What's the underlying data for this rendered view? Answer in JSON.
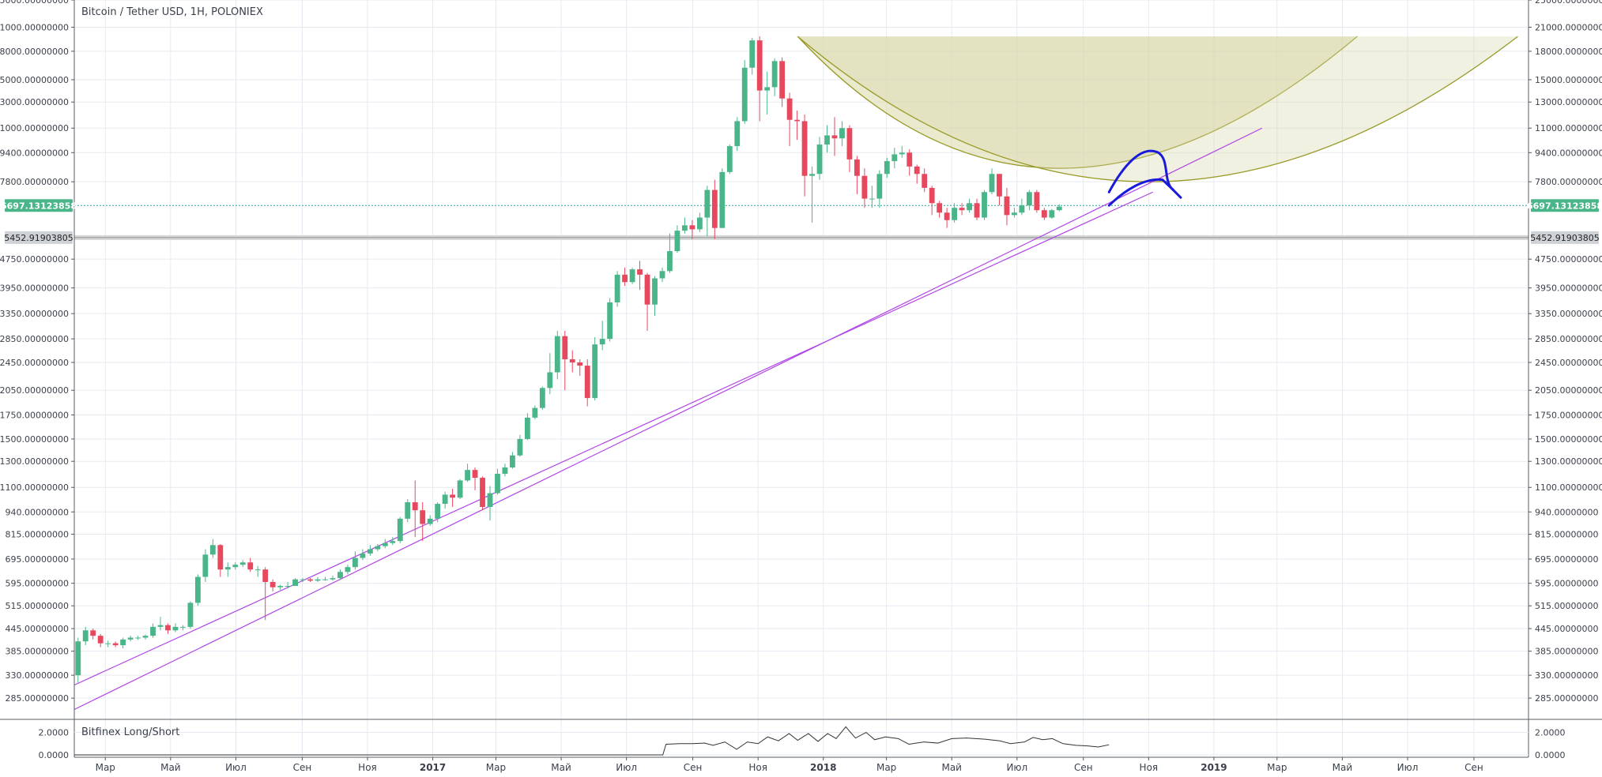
{
  "header": {
    "title": "Bitcoin / Tether USD, 1H, POLONIEX"
  },
  "price_badges": {
    "current": "6697.13123858",
    "support": "5452.91903805"
  },
  "indicator": {
    "title": "Bitfinex Long/Short",
    "ticks": [
      {
        "v": 2,
        "label": "2.0000"
      },
      {
        "v": 0,
        "label": "0.0000"
      }
    ],
    "series": [
      [
        "2016-02-01",
        0
      ],
      [
        "2016-03-01",
        0
      ],
      [
        "2016-05-01",
        0
      ],
      [
        "2016-07-01",
        0
      ],
      [
        "2016-09-01",
        0
      ],
      [
        "2016-11-01",
        0
      ],
      [
        "2017-01-01",
        0
      ],
      [
        "2017-03-01",
        0
      ],
      [
        "2017-05-01",
        0
      ],
      [
        "2017-07-01",
        0
      ],
      [
        "2017-08-04",
        0
      ],
      [
        "2017-08-07",
        0.95
      ],
      [
        "2017-08-20",
        1.0
      ],
      [
        "2017-09-01",
        1.0
      ],
      [
        "2017-09-12",
        1.05
      ],
      [
        "2017-09-20",
        0.85
      ],
      [
        "2017-10-01",
        1.15
      ],
      [
        "2017-10-12",
        0.5
      ],
      [
        "2017-10-22",
        1.15
      ],
      [
        "2017-11-01",
        1.0
      ],
      [
        "2017-11-10",
        1.6
      ],
      [
        "2017-11-20",
        1.25
      ],
      [
        "2017-11-30",
        1.9
      ],
      [
        "2017-12-08",
        1.3
      ],
      [
        "2017-12-18",
        1.9
      ],
      [
        "2017-12-27",
        1.2
      ],
      [
        "2018-01-05",
        1.9
      ],
      [
        "2018-01-13",
        1.45
      ],
      [
        "2018-01-22",
        2.5
      ],
      [
        "2018-01-31",
        1.5
      ],
      [
        "2018-02-10",
        2.0
      ],
      [
        "2018-02-18",
        1.35
      ],
      [
        "2018-02-28",
        1.6
      ],
      [
        "2018-03-12",
        1.45
      ],
      [
        "2018-03-22",
        0.95
      ],
      [
        "2018-04-05",
        1.15
      ],
      [
        "2018-04-18",
        1.05
      ],
      [
        "2018-05-01",
        1.45
      ],
      [
        "2018-05-15",
        1.5
      ],
      [
        "2018-06-01",
        1.4
      ],
      [
        "2018-06-15",
        1.25
      ],
      [
        "2018-06-25",
        1.0
      ],
      [
        "2018-07-08",
        1.15
      ],
      [
        "2018-07-16",
        1.55
      ],
      [
        "2018-07-25",
        1.35
      ],
      [
        "2018-08-03",
        1.45
      ],
      [
        "2018-08-13",
        1.0
      ],
      [
        "2018-08-25",
        0.85
      ],
      [
        "2018-09-05",
        0.8
      ],
      [
        "2018-09-15",
        0.7
      ],
      [
        "2018-09-25",
        0.9
      ]
    ]
  },
  "chart_data": {
    "type": "candlestick",
    "title": "Bitcoin / Tether USD, 1H, POLONIEX",
    "symbol": "Bitcoin / Tether USD",
    "interval": "1H",
    "exchange": "POLONIEX",
    "y_scale": "log",
    "ylim": [
      250,
      25000
    ],
    "x_range": [
      "2016-02-01",
      "2019-10-22"
    ],
    "y_ticks": [
      {
        "v": 25000,
        "label": "25000.00000000"
      },
      {
        "v": 21000,
        "label": "21000.00000000"
      },
      {
        "v": 18000,
        "label": "18000.00000000"
      },
      {
        "v": 15000,
        "label": "15000.00000000"
      },
      {
        "v": 13000,
        "label": "13000.00000000"
      },
      {
        "v": 11000,
        "label": "11000.00000000"
      },
      {
        "v": 9400,
        "label": "9400.00000000"
      },
      {
        "v": 7800,
        "label": "7800.00000000"
      },
      {
        "v": 4750,
        "label": "4750.00000000"
      },
      {
        "v": 3950,
        "label": "3950.00000000"
      },
      {
        "v": 3350,
        "label": "3350.00000000"
      },
      {
        "v": 2850,
        "label": "2850.00000000"
      },
      {
        "v": 2450,
        "label": "2450.00000000"
      },
      {
        "v": 2050,
        "label": "2050.00000000"
      },
      {
        "v": 1750,
        "label": "1750.00000000"
      },
      {
        "v": 1500,
        "label": "1500.00000000"
      },
      {
        "v": 1300,
        "label": "1300.00000000"
      },
      {
        "v": 1100,
        "label": "1100.00000000"
      },
      {
        "v": 940,
        "label": "940.00000000"
      },
      {
        "v": 815,
        "label": "815.00000000"
      },
      {
        "v": 695,
        "label": "695.00000000"
      },
      {
        "v": 595,
        "label": "595.00000000"
      },
      {
        "v": 515,
        "label": "515.00000000"
      },
      {
        "v": 445,
        "label": "445.00000000"
      },
      {
        "v": 385,
        "label": "385.00000000"
      },
      {
        "v": 330,
        "label": "330.00000000"
      },
      {
        "v": 285,
        "label": "285.00000000"
      }
    ],
    "x_ticks": [
      {
        "date": "2016-03-01",
        "label": "Мар",
        "bold": false
      },
      {
        "date": "2016-05-01",
        "label": "Май",
        "bold": false
      },
      {
        "date": "2016-07-01",
        "label": "Июл",
        "bold": false
      },
      {
        "date": "2016-09-01",
        "label": "Сен",
        "bold": false
      },
      {
        "date": "2016-11-01",
        "label": "Ноя",
        "bold": false
      },
      {
        "date": "2017-01-01",
        "label": "2017",
        "bold": true
      },
      {
        "date": "2017-03-01",
        "label": "Мар",
        "bold": false
      },
      {
        "date": "2017-05-01",
        "label": "Май",
        "bold": false
      },
      {
        "date": "2017-07-01",
        "label": "Июл",
        "bold": false
      },
      {
        "date": "2017-09-01",
        "label": "Сен",
        "bold": false
      },
      {
        "date": "2017-11-01",
        "label": "Ноя",
        "bold": false
      },
      {
        "date": "2018-01-01",
        "label": "2018",
        "bold": true
      },
      {
        "date": "2018-03-01",
        "label": "Мар",
        "bold": false
      },
      {
        "date": "2018-05-01",
        "label": "Май",
        "bold": false
      },
      {
        "date": "2018-07-01",
        "label": "Июл",
        "bold": false
      },
      {
        "date": "2018-09-01",
        "label": "Сен",
        "bold": false
      },
      {
        "date": "2018-11-01",
        "label": "Ноя",
        "bold": false
      },
      {
        "date": "2019-01-01",
        "label": "2019",
        "bold": true
      },
      {
        "date": "2019-03-01",
        "label": "Мар",
        "bold": false
      },
      {
        "date": "2019-05-01",
        "label": "Май",
        "bold": false
      },
      {
        "date": "2019-07-01",
        "label": "Июл",
        "bold": false
      },
      {
        "date": "2019-09-01",
        "label": "Сен",
        "bold": false
      }
    ],
    "candle_start": "2016-02-01",
    "candle_period_days": 7,
    "candles": [
      [
        330,
        410,
        315,
        420
      ],
      [
        410,
        440,
        400,
        450
      ],
      [
        440,
        425,
        415,
        445
      ],
      [
        425,
        405,
        395,
        430
      ],
      [
        405,
        405,
        395,
        412
      ],
      [
        405,
        400,
        395,
        410
      ],
      [
        400,
        415,
        392,
        420
      ],
      [
        415,
        420,
        410,
        425
      ],
      [
        420,
        420,
        414,
        425
      ],
      [
        420,
        425,
        415,
        428
      ],
      [
        425,
        450,
        420,
        460
      ],
      [
        450,
        455,
        440,
        480
      ],
      [
        455,
        440,
        430,
        460
      ],
      [
        440,
        450,
        435,
        460
      ],
      [
        450,
        450,
        440,
        455
      ],
      [
        450,
        525,
        445,
        530
      ],
      [
        525,
        620,
        515,
        630
      ],
      [
        620,
        715,
        600,
        740
      ],
      [
        715,
        760,
        700,
        790
      ],
      [
        760,
        650,
        620,
        765
      ],
      [
        650,
        660,
        620,
        680
      ],
      [
        660,
        670,
        650,
        680
      ],
      [
        670,
        680,
        660,
        690
      ],
      [
        680,
        650,
        640,
        700
      ],
      [
        650,
        650,
        620,
        665
      ],
      [
        650,
        600,
        470,
        660
      ],
      [
        600,
        580,
        565,
        610
      ],
      [
        580,
        585,
        570,
        590
      ],
      [
        585,
        585,
        575,
        600
      ],
      [
        585,
        610,
        590,
        615
      ],
      [
        610,
        610,
        600,
        615
      ],
      [
        610,
        605,
        600,
        615
      ],
      [
        605,
        610,
        600,
        620
      ],
      [
        610,
        610,
        605,
        620
      ],
      [
        610,
        615,
        605,
        625
      ],
      [
        615,
        640,
        610,
        650
      ],
      [
        640,
        660,
        630,
        670
      ],
      [
        660,
        700,
        650,
        730
      ],
      [
        700,
        720,
        690,
        740
      ],
      [
        720,
        740,
        710,
        760
      ],
      [
        740,
        755,
        730,
        765
      ],
      [
        755,
        770,
        745,
        790
      ],
      [
        770,
        780,
        760,
        800
      ],
      [
        780,
        900,
        770,
        910
      ],
      [
        900,
        1000,
        880,
        1020
      ],
      [
        1000,
        950,
        800,
        1150
      ],
      [
        950,
        870,
        780,
        1000
      ],
      [
        870,
        900,
        860,
        920
      ],
      [
        900,
        990,
        880,
        1000
      ],
      [
        990,
        1050,
        960,
        1070
      ],
      [
        1050,
        1030,
        970,
        1090
      ],
      [
        1030,
        1150,
        1020,
        1160
      ],
      [
        1150,
        1230,
        1140,
        1280
      ],
      [
        1230,
        1170,
        1080,
        1250
      ],
      [
        1170,
        970,
        950,
        1180
      ],
      [
        970,
        1060,
        890,
        1110
      ],
      [
        1060,
        1200,
        1050,
        1240
      ],
      [
        1200,
        1250,
        1180,
        1280
      ],
      [
        1250,
        1350,
        1240,
        1380
      ],
      [
        1350,
        1500,
        1340,
        1540
      ],
      [
        1500,
        1720,
        1490,
        1770
      ],
      [
        1720,
        1830,
        1700,
        1860
      ],
      [
        1830,
        2080,
        1810,
        2100
      ],
      [
        2080,
        2300,
        2000,
        2600
      ],
      [
        2300,
        2900,
        2200,
        3000
      ],
      [
        2900,
        2500,
        2050,
        3000
      ],
      [
        2500,
        2450,
        2300,
        2650
      ],
      [
        2450,
        2400,
        2250,
        2500
      ],
      [
        2400,
        1950,
        1850,
        2500
      ],
      [
        1950,
        2750,
        1920,
        2880
      ],
      [
        2750,
        2850,
        2650,
        3200
      ],
      [
        2850,
        3600,
        2800,
        3700
      ],
      [
        3600,
        4300,
        3500,
        4400
      ],
      [
        4300,
        4100,
        4000,
        4500
      ],
      [
        4100,
        4450,
        4050,
        4500
      ],
      [
        4450,
        4300,
        3900,
        4700
      ],
      [
        4300,
        3550,
        3000,
        4350
      ],
      [
        3550,
        4200,
        3300,
        4260
      ],
      [
        4200,
        4400,
        4100,
        4500
      ],
      [
        4400,
        5000,
        4350,
        5600
      ],
      [
        5000,
        5700,
        4950,
        5900
      ],
      [
        5700,
        5900,
        5600,
        6200
      ],
      [
        5900,
        5750,
        5400,
        6100
      ],
      [
        5750,
        6200,
        5650,
        6400
      ],
      [
        6200,
        7400,
        5500,
        7600
      ],
      [
        7400,
        5800,
        5400,
        7900
      ],
      [
        5800,
        8300,
        5800,
        8500
      ],
      [
        8300,
        9800,
        8200,
        9900
      ],
      [
        9800,
        11500,
        9500,
        11800
      ],
      [
        11500,
        16200,
        11300,
        17000
      ],
      [
        16200,
        19300,
        15500,
        19600
      ],
      [
        19300,
        14000,
        11500,
        19800
      ],
      [
        14000,
        14300,
        12000,
        15800
      ],
      [
        14300,
        16900,
        13500,
        17200
      ],
      [
        16900,
        13300,
        12600,
        17300
      ],
      [
        13300,
        11600,
        9800,
        13800
      ],
      [
        11600,
        11500,
        10200,
        12300
      ],
      [
        11500,
        8100,
        7100,
        12000
      ],
      [
        8100,
        8200,
        6000,
        8600
      ],
      [
        8200,
        9900,
        7900,
        10400
      ],
      [
        9900,
        10500,
        9400,
        11200
      ],
      [
        10500,
        10300,
        9200,
        11800
      ],
      [
        10300,
        11000,
        9800,
        11500
      ],
      [
        11000,
        9000,
        8300,
        11200
      ],
      [
        9000,
        8100,
        7200,
        9200
      ],
      [
        8100,
        7000,
        6600,
        8500
      ],
      [
        7000,
        7000,
        6600,
        7600
      ],
      [
        7000,
        8200,
        6600,
        8400
      ],
      [
        8200,
        8900,
        8000,
        9100
      ],
      [
        8900,
        9300,
        8500,
        9700
      ],
      [
        9300,
        9400,
        9100,
        9800
      ],
      [
        9400,
        8600,
        8100,
        9600
      ],
      [
        8600,
        8200,
        7700,
        8700
      ],
      [
        8200,
        7500,
        7300,
        8500
      ],
      [
        7500,
        6800,
        6300,
        7600
      ],
      [
        6800,
        6400,
        6200,
        6900
      ],
      [
        6400,
        6100,
        5800,
        6600
      ],
      [
        6100,
        6600,
        6000,
        6800
      ],
      [
        6600,
        6500,
        6300,
        6800
      ],
      [
        6500,
        6800,
        6400,
        7000
      ],
      [
        6800,
        6200,
        6100,
        7000
      ],
      [
        6200,
        7300,
        6100,
        7400
      ],
      [
        7300,
        8200,
        7200,
        8500
      ],
      [
        8200,
        7100,
        6700,
        8200
      ],
      [
        7100,
        6300,
        5900,
        7500
      ],
      [
        6300,
        6400,
        6200,
        6600
      ],
      [
        6400,
        6700,
        6300,
        7000
      ],
      [
        6700,
        7300,
        6500,
        7400
      ],
      [
        7300,
        6500,
        6400,
        7400
      ],
      [
        6500,
        6200,
        6100,
        6600
      ],
      [
        6200,
        6500,
        6150,
        6550
      ],
      [
        6500,
        6650,
        6450,
        6750
      ]
    ],
    "lines": [
      {
        "id": "upper-trendline",
        "color": "#b144e6",
        "p1": [
          "2016-02-01",
          310
        ],
        "p2": [
          "2018-11-05",
          7300
        ]
      },
      {
        "id": "lower-trendline",
        "color": "#b144e6",
        "p1": [
          "2016-02-01",
          265
        ],
        "p2": [
          "2019-02-15",
          11000
        ]
      }
    ],
    "horizontal_levels": [
      {
        "id": "current-price-line",
        "value": 6697.13123858,
        "label": "6697.13123858",
        "color": "#26a69a"
      },
      {
        "id": "support-line",
        "value": 5452.91903805,
        "label": "5452.91903805",
        "color": "#9aa0a6"
      }
    ],
    "annotation_color": "#1a1adb",
    "arc_color": "#9a9a2a",
    "arc_fill": "#d8d8a8"
  }
}
